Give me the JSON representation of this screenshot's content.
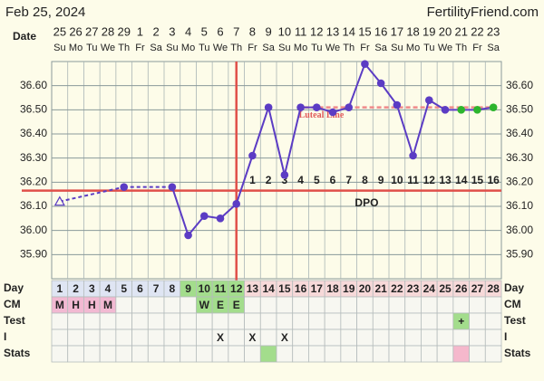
{
  "chart_data": {
    "type": "line",
    "title": "Feb 25, 2024",
    "site": "FertilityFriend.com",
    "date_label": "Date",
    "dates": [
      "25",
      "26",
      "27",
      "28",
      "29",
      "1",
      "2",
      "3",
      "4",
      "5",
      "6",
      "7",
      "8",
      "9",
      "10",
      "11",
      "12",
      "13",
      "14",
      "15",
      "16",
      "17",
      "18",
      "19",
      "20",
      "21",
      "22",
      "23"
    ],
    "weekdays": [
      "Su",
      "Mo",
      "Tu",
      "We",
      "Th",
      "Fr",
      "Sa",
      "Su",
      "Mo",
      "Tu",
      "We",
      "Th",
      "Fr",
      "Sa",
      "Su",
      "Mo",
      "Tu",
      "We",
      "Th",
      "Fr",
      "Sa",
      "Su",
      "Mo",
      "Tu",
      "We",
      "Th",
      "Fr",
      "Sa"
    ],
    "categories": [
      1,
      2,
      3,
      4,
      5,
      6,
      7,
      8,
      9,
      10,
      11,
      12,
      13,
      14,
      15,
      16,
      17,
      18,
      19,
      20,
      21,
      22,
      23,
      24,
      25,
      26,
      27,
      28
    ],
    "ylim": [
      35.8,
      36.7
    ],
    "yticks": [
      {
        "value": 35.9,
        "label": "35.90"
      },
      {
        "value": 36.0,
        "label": "36.00"
      },
      {
        "value": 36.1,
        "label": "36.10"
      },
      {
        "value": 36.2,
        "label": "36.20"
      },
      {
        "value": 36.3,
        "label": "36.30"
      },
      {
        "value": 36.4,
        "label": "36.40"
      },
      {
        "value": 36.5,
        "label": "36.50"
      },
      {
        "value": 36.6,
        "label": "36.60"
      }
    ],
    "grid": true,
    "series": [
      {
        "color": "#5b3cc4",
        "values": [
          36.12,
          null,
          null,
          null,
          36.18,
          null,
          null,
          36.18,
          35.98,
          36.06,
          36.05,
          36.11,
          36.31,
          36.51,
          36.23,
          36.51,
          36.51,
          36.49,
          36.51,
          36.69,
          36.61,
          36.52,
          36.31,
          36.54,
          36.5,
          36.5,
          36.5,
          36.51
        ],
        "point_colors": [
          "#5b3cc4",
          null,
          null,
          null,
          "#5b3cc4",
          null,
          null,
          "#5b3cc4",
          "#5b3cc4",
          "#5b3cc4",
          "#5b3cc4",
          "#5b3cc4",
          "#5b3cc4",
          "#5b3cc4",
          "#5b3cc4",
          "#5b3cc4",
          "#5b3cc4",
          "#5b3cc4",
          "#5b3cc4",
          "#5b3cc4",
          "#5b3cc4",
          "#5b3cc4",
          "#5b3cc4",
          "#5b3cc4",
          "#5b3cc4",
          "#2db52d",
          "#2db52d",
          "#2db52d"
        ],
        "point_shapes": [
          "open-triangle",
          null,
          null,
          null,
          "circle",
          null,
          null,
          "circle",
          "circle",
          "circle",
          "circle",
          "circle",
          "circle",
          "circle",
          "circle",
          "circle",
          "circle",
          "circle",
          "circle",
          "circle",
          "circle",
          "circle",
          "circle",
          "circle",
          "circle",
          "circle",
          "circle",
          "circle"
        ]
      }
    ],
    "coverline": 36.165,
    "coverline_color": "#e0504a",
    "ovulation_day": 12,
    "luteal_line": {
      "label": "Luteal Line",
      "value": 36.51,
      "from_day": 16,
      "color": "#f08a8a"
    },
    "dpo": {
      "label": "DPO",
      "numbers": [
        1,
        2,
        3,
        4,
        5,
        6,
        7,
        8,
        9,
        10,
        11,
        12,
        13,
        14,
        15,
        16
      ]
    },
    "table": {
      "day_label": "Day",
      "day_colors": [
        "#dfe5f3",
        "#dfe5f3",
        "#dfe5f3",
        "#dfe5f3",
        "#dfe5f3",
        "#dfe5f3",
        "#dfe5f3",
        "#dfe5f3",
        "#a3dd8c",
        "#a3dd8c",
        "#a3dd8c",
        "#a3dd8c",
        "#f7d9d9",
        "#f7d9d9",
        "#f7d9d9",
        "#f7d9d9",
        "#f7d9d9",
        "#f7d9d9",
        "#f7d9d9",
        "#f7d9d9",
        "#f7d9d9",
        "#f7d9d9",
        "#f7d9d9",
        "#f7d9d9",
        "#f7d9d9",
        "#f7d9d9",
        "#f7d9d9",
        "#f7d9d9"
      ],
      "rows": [
        {
          "label": "CM",
          "cells": [
            "M",
            "H",
            "H",
            "M",
            null,
            null,
            null,
            null,
            null,
            "W",
            "E",
            "E",
            null,
            null,
            null,
            null,
            null,
            null,
            null,
            null,
            null,
            null,
            null,
            null,
            null,
            null,
            null,
            null
          ],
          "colors": [
            "#f2b9d2",
            "#f2b9d2",
            "#f2b9d2",
            "#f2b9d2",
            null,
            null,
            null,
            null,
            null,
            "#a3dd8c",
            "#a3dd8c",
            "#a3dd8c",
            null,
            null,
            null,
            null,
            null,
            null,
            null,
            null,
            null,
            null,
            null,
            null,
            null,
            null,
            null,
            null
          ]
        },
        {
          "label": "Test",
          "cells": [
            null,
            null,
            null,
            null,
            null,
            null,
            null,
            null,
            null,
            null,
            null,
            null,
            null,
            null,
            null,
            null,
            null,
            null,
            null,
            null,
            null,
            null,
            null,
            null,
            null,
            "+",
            null,
            null
          ],
          "colors": [
            null,
            null,
            null,
            null,
            null,
            null,
            null,
            null,
            null,
            null,
            null,
            null,
            null,
            null,
            null,
            null,
            null,
            null,
            null,
            null,
            null,
            null,
            null,
            null,
            null,
            "#a3dd8c",
            null,
            null
          ]
        },
        {
          "label": "I",
          "cells": [
            null,
            null,
            null,
            null,
            null,
            null,
            null,
            null,
            null,
            null,
            "X",
            null,
            "X",
            null,
            "X",
            null,
            null,
            null,
            null,
            null,
            null,
            null,
            null,
            null,
            null,
            null,
            null,
            null
          ],
          "colors": [
            null,
            null,
            null,
            null,
            null,
            null,
            null,
            null,
            null,
            null,
            null,
            null,
            null,
            null,
            null,
            null,
            null,
            null,
            null,
            null,
            null,
            null,
            null,
            null,
            null,
            null,
            null,
            null
          ]
        },
        {
          "label": "Stats",
          "cells": [
            null,
            null,
            null,
            null,
            null,
            null,
            null,
            null,
            null,
            null,
            null,
            null,
            null,
            null,
            null,
            null,
            null,
            null,
            null,
            null,
            null,
            null,
            null,
            null,
            null,
            null,
            null,
            null
          ],
          "colors": [
            null,
            null,
            null,
            null,
            null,
            null,
            null,
            null,
            null,
            null,
            null,
            null,
            null,
            "#a3dd8c",
            null,
            null,
            null,
            null,
            null,
            null,
            null,
            null,
            null,
            null,
            null,
            "#f5b8cc",
            null,
            null
          ]
        }
      ]
    }
  }
}
